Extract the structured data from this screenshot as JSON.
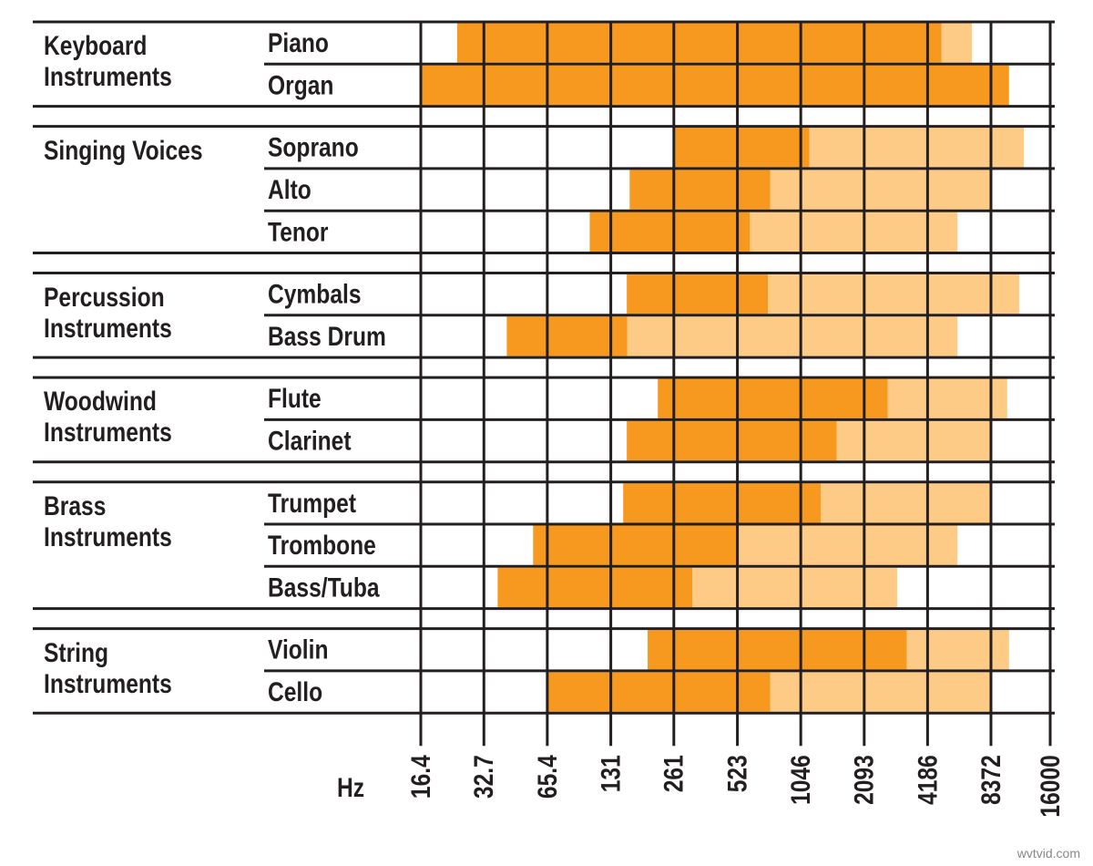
{
  "chart_data": {
    "type": "range",
    "x_label": "Hz",
    "xscale": "log",
    "xlim": [
      16.4,
      16000
    ],
    "xticks": [
      16.4,
      32.7,
      65.4,
      131,
      261,
      523,
      1046,
      2093,
      4186,
      8372,
      16000
    ],
    "colors": {
      "fundamental": "#f7991f",
      "harmonics": "#fdcb85"
    },
    "groups": [
      {
        "name": "Keyboard Instruments",
        "rows": [
          {
            "name": "Piano",
            "fundamental": [
              24.4,
              4880
            ],
            "harmonics": [
              4880,
              6800
            ]
          },
          {
            "name": "Organ",
            "fundamental": [
              16.4,
              10200
            ],
            "harmonics": null
          }
        ]
      },
      {
        "name": "Singing Voices",
        "rows": [
          {
            "name": "Soprano",
            "fundamental": [
              261,
              1150
            ],
            "harmonics": [
              1150,
              12000
            ]
          },
          {
            "name": "Alto",
            "fundamental": [
              161,
              750
            ],
            "harmonics": [
              750,
              8400
            ]
          },
          {
            "name": "Tenor",
            "fundamental": [
              104,
              600
            ],
            "harmonics": [
              600,
              5800
            ]
          }
        ]
      },
      {
        "name": "Percussion Instruments",
        "rows": [
          {
            "name": "Cymbals",
            "fundamental": [
              156,
              730
            ],
            "harmonics": [
              730,
              11400
            ]
          },
          {
            "name": "Bass Drum",
            "fundamental": [
              42,
              157
            ],
            "harmonics": [
              157,
              5800
            ]
          }
        ]
      },
      {
        "name": "Woodwind Instruments",
        "rows": [
          {
            "name": "Flute",
            "fundamental": [
              219,
              2710
            ],
            "harmonics": [
              2710,
              10000
            ]
          },
          {
            "name": "Clarinet",
            "fundamental": [
              156,
              1550
            ],
            "harmonics": [
              1550,
              8400
            ]
          }
        ]
      },
      {
        "name": "Brass Instruments",
        "rows": [
          {
            "name": "Trumpet",
            "fundamental": [
              150,
              1300
            ],
            "harmonics": [
              1300,
              8400
            ]
          },
          {
            "name": "Trombone",
            "fundamental": [
              56,
              520
            ],
            "harmonics": [
              520,
              5800
            ]
          },
          {
            "name": "Bass/Tuba",
            "fundamental": [
              38,
              320
            ],
            "harmonics": [
              320,
              3000
            ]
          }
        ]
      },
      {
        "name": "String Instruments",
        "rows": [
          {
            "name": "Violin",
            "fundamental": [
              196,
              3340
            ],
            "harmonics": [
              3340,
              10200
            ]
          },
          {
            "name": "Cello",
            "fundamental": [
              65.4,
              750
            ],
            "harmonics": [
              750,
              8400
            ]
          }
        ]
      }
    ],
    "watermark": "wvtvid.com"
  }
}
